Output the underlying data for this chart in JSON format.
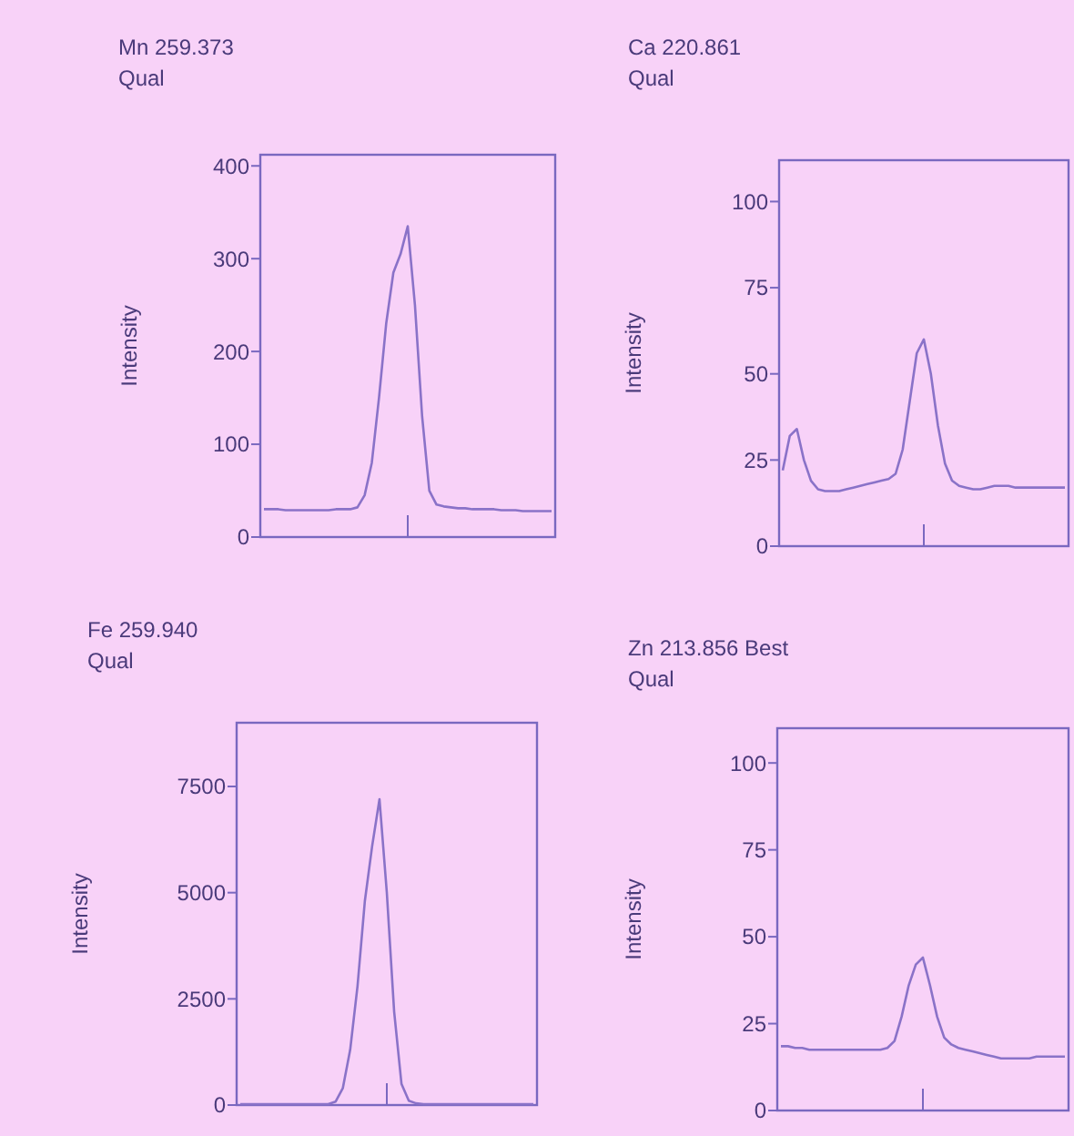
{
  "chart_data": [
    {
      "type": "line",
      "title": "Mn 259.373",
      "subtitle": "Qual",
      "ylabel": "Intensity",
      "categories": [
        null,
        null,
        null,
        null,
        null,
        null,
        null,
        null,
        null,
        null,
        null,
        null,
        null,
        null,
        null,
        null,
        null,
        null,
        null,
        null,
        null,
        null,
        null,
        null,
        null,
        null,
        null,
        null,
        null,
        null,
        null,
        null,
        null,
        null,
        null,
        null,
        null,
        null,
        null,
        null,
        null
      ],
      "ylim": [
        0,
        412
      ],
      "yticks": [
        0,
        100,
        200,
        300,
        400
      ],
      "series": [
        {
          "color": "#8a72c8",
          "values": [
            30,
            30,
            30,
            29,
            29,
            29,
            29,
            29,
            29,
            29,
            30,
            30,
            30,
            32,
            45,
            80,
            150,
            230,
            285,
            305,
            335,
            250,
            130,
            50,
            35,
            33,
            32,
            31,
            31,
            30,
            30,
            30,
            30,
            29,
            29,
            29,
            28,
            28,
            28,
            28,
            28
          ]
        }
      ]
    },
    {
      "type": "line",
      "title": "Ca 220.861",
      "subtitle": "Qual",
      "ylabel": "Intensity",
      "categories": [
        null,
        null,
        null,
        null,
        null,
        null,
        null,
        null,
        null,
        null,
        null,
        null,
        null,
        null,
        null,
        null,
        null,
        null,
        null,
        null,
        null,
        null,
        null,
        null,
        null,
        null,
        null,
        null,
        null,
        null,
        null,
        null,
        null,
        null,
        null,
        null,
        null,
        null,
        null,
        null,
        null
      ],
      "ylim": [
        0,
        112
      ],
      "yticks": [
        0,
        25,
        50,
        75,
        100
      ],
      "series": [
        {
          "color": "#8a72c8",
          "values": [
            22,
            32,
            34,
            25,
            19,
            16.5,
            16,
            16,
            16,
            16.5,
            17,
            17.5,
            18,
            18.5,
            19,
            19.5,
            21,
            28,
            42,
            56,
            60,
            50,
            35,
            24,
            19,
            17.5,
            17,
            16.5,
            16.5,
            17,
            17.5,
            17.5,
            17.5,
            17,
            17,
            17,
            17,
            17,
            17,
            17,
            17
          ]
        }
      ]
    },
    {
      "type": "line",
      "title": "Fe 259.940",
      "subtitle": "Qual",
      "ylabel": "Intensity",
      "categories": [
        null,
        null,
        null,
        null,
        null,
        null,
        null,
        null,
        null,
        null,
        null,
        null,
        null,
        null,
        null,
        null,
        null,
        null,
        null,
        null,
        null,
        null,
        null,
        null,
        null,
        null,
        null,
        null,
        null,
        null,
        null,
        null,
        null,
        null,
        null,
        null,
        null,
        null,
        null,
        null,
        null
      ],
      "ylim": [
        0,
        9000
      ],
      "yticks": [
        0,
        2500,
        5000,
        7500
      ],
      "series": [
        {
          "color": "#8a72c8",
          "values": [
            20,
            20,
            20,
            20,
            20,
            20,
            20,
            20,
            20,
            20,
            20,
            20,
            20,
            80,
            400,
            1300,
            2800,
            4800,
            6100,
            7200,
            5000,
            2200,
            500,
            100,
            40,
            20,
            20,
            20,
            20,
            20,
            20,
            20,
            20,
            20,
            20,
            20,
            20,
            20,
            20,
            20,
            20
          ]
        }
      ]
    },
    {
      "type": "line",
      "title": "Zn 213.856 Best",
      "subtitle": "Qual",
      "ylabel": "Intensity",
      "categories": [
        null,
        null,
        null,
        null,
        null,
        null,
        null,
        null,
        null,
        null,
        null,
        null,
        null,
        null,
        null,
        null,
        null,
        null,
        null,
        null,
        null,
        null,
        null,
        null,
        null,
        null,
        null,
        null,
        null,
        null,
        null,
        null,
        null,
        null,
        null,
        null,
        null,
        null,
        null,
        null,
        null
      ],
      "ylim": [
        0,
        110
      ],
      "yticks": [
        0,
        25,
        50,
        75,
        100
      ],
      "series": [
        {
          "color": "#8a72c8",
          "values": [
            18.5,
            18.5,
            18,
            18,
            17.5,
            17.5,
            17.5,
            17.5,
            17.5,
            17.5,
            17.5,
            17.5,
            17.5,
            17.5,
            17.5,
            18,
            20,
            27,
            36,
            42,
            44,
            36,
            27,
            21,
            19,
            18,
            17.5,
            17,
            16.5,
            16,
            15.5,
            15,
            15,
            15,
            15,
            15,
            15.5,
            15.5,
            15.5,
            15.5,
            15.5
          ]
        }
      ]
    }
  ]
}
